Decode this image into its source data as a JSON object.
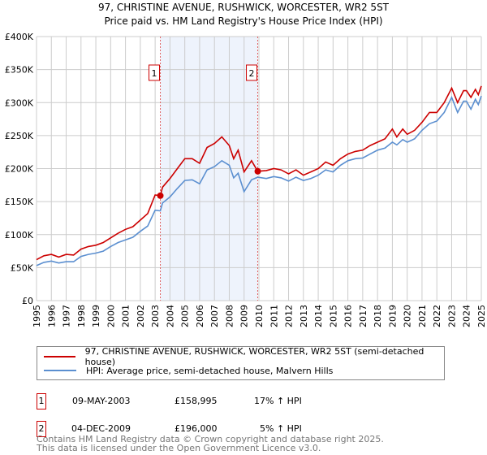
{
  "title": "97, CHRISTINE AVENUE, RUSHWICK, WORCESTER, WR2 5ST",
  "subtitle": "Price paid vs. HM Land Registry's House Price Index (HPI)",
  "chart_data": {
    "type": "line",
    "title": "97, CHRISTINE AVENUE, RUSHWICK, WORCESTER, WR2 5ST",
    "subtitle": "Price paid vs. HM Land Registry's House Price Index (HPI)",
    "xlim": [
      1995,
      2025
    ],
    "ylim": [
      0,
      400000
    ],
    "x_ticks": [
      "1995",
      "1996",
      "1997",
      "1998",
      "1999",
      "2000",
      "2001",
      "2002",
      "2003",
      "2004",
      "2005",
      "2006",
      "2007",
      "2008",
      "2009",
      "2010",
      "2011",
      "2012",
      "2013",
      "2014",
      "2015",
      "2016",
      "2017",
      "2018",
      "2019",
      "2020",
      "2021",
      "2022",
      "2023",
      "2024",
      "2025"
    ],
    "y_ticks": [
      {
        "v": 0,
        "label": "£0"
      },
      {
        "v": 50000,
        "label": "£50K"
      },
      {
        "v": 100000,
        "label": "£100K"
      },
      {
        "v": 150000,
        "label": "£150K"
      },
      {
        "v": 200000,
        "label": "£200K"
      },
      {
        "v": 250000,
        "label": "£250K"
      },
      {
        "v": 300000,
        "label": "£300K"
      },
      {
        "v": 350000,
        "label": "£350K"
      },
      {
        "v": 400000,
        "label": "£400K"
      }
    ],
    "grid": true,
    "shaded_span": [
      2003.35,
      2009.92
    ],
    "series": [
      {
        "name": "97, CHRISTINE AVENUE, RUSHWICK, WORCESTER, WR2 5ST (semi-detached house)",
        "color": "#cc0000",
        "x": [
          1995,
          1995.5,
          1996,
          1996.5,
          1997,
          1997.5,
          1998,
          1998.5,
          1999,
          1999.5,
          2000,
          2000.5,
          2001,
          2001.5,
          2002,
          2002.5,
          2003,
          2003.35,
          2003.5,
          2004,
          2004.5,
          2005,
          2005.5,
          2006,
          2006.5,
          2007,
          2007.5,
          2008,
          2008.3,
          2008.6,
          2009,
          2009.5,
          2009.92,
          2010.5,
          2011,
          2011.5,
          2012,
          2012.5,
          2013,
          2013.5,
          2014,
          2014.5,
          2015,
          2015.5,
          2016,
          2016.5,
          2017,
          2017.5,
          2018,
          2018.5,
          2019,
          2019.3,
          2019.7,
          2020,
          2020.5,
          2021,
          2021.5,
          2022,
          2022.5,
          2023,
          2023.4,
          2023.8,
          2024,
          2024.3,
          2024.6,
          2024.8,
          2025
        ],
        "y": [
          62000,
          68000,
          70000,
          66000,
          70000,
          69000,
          78000,
          82000,
          84000,
          88000,
          95000,
          102000,
          108000,
          112000,
          122000,
          132000,
          160000,
          159000,
          172000,
          185000,
          200000,
          215000,
          215000,
          208000,
          232000,
          238000,
          248000,
          235000,
          215000,
          228000,
          195000,
          212000,
          196000,
          197000,
          200000,
          198000,
          192000,
          198000,
          190000,
          195000,
          200000,
          210000,
          205000,
          215000,
          222000,
          226000,
          228000,
          235000,
          240000,
          245000,
          260000,
          248000,
          260000,
          252000,
          258000,
          270000,
          285000,
          285000,
          300000,
          322000,
          300000,
          318000,
          318000,
          308000,
          320000,
          312000,
          325000
        ]
      },
      {
        "name": "HPI: Average price, semi-detached house, Malvern Hills",
        "color": "#5b8fd0",
        "x": [
          1995,
          1995.5,
          1996,
          1996.5,
          1997,
          1997.5,
          1998,
          1998.5,
          1999,
          1999.5,
          2000,
          2000.5,
          2001,
          2001.5,
          2002,
          2002.5,
          2003,
          2003.35,
          2003.5,
          2004,
          2004.5,
          2005,
          2005.5,
          2006,
          2006.5,
          2007,
          2007.5,
          2008,
          2008.3,
          2008.6,
          2009,
          2009.5,
          2009.92,
          2010.5,
          2011,
          2011.5,
          2012,
          2012.5,
          2013,
          2013.5,
          2014,
          2014.5,
          2015,
          2015.5,
          2016,
          2016.5,
          2017,
          2017.5,
          2018,
          2018.5,
          2019,
          2019.3,
          2019.7,
          2020,
          2020.5,
          2021,
          2021.5,
          2022,
          2022.5,
          2023,
          2023.4,
          2023.8,
          2024,
          2024.3,
          2024.6,
          2024.8,
          2025
        ],
        "y": [
          53000,
          58000,
          60000,
          57000,
          59000,
          59000,
          67000,
          70000,
          72000,
          75000,
          82000,
          88000,
          92000,
          96000,
          105000,
          113000,
          137000,
          136000,
          148000,
          157000,
          170000,
          182000,
          183000,
          177000,
          198000,
          203000,
          212000,
          205000,
          186000,
          193000,
          165000,
          183000,
          187000,
          185000,
          188000,
          186000,
          181000,
          187000,
          182000,
          185000,
          190000,
          198000,
          195000,
          205000,
          212000,
          215000,
          216000,
          222000,
          228000,
          231000,
          240000,
          236000,
          244000,
          240000,
          245000,
          258000,
          268000,
          272000,
          285000,
          308000,
          285000,
          302000,
          302000,
          290000,
          305000,
          297000,
          310000
        ]
      }
    ],
    "annotations": [
      {
        "label": "1",
        "x": 2003.35,
        "y": 158995
      },
      {
        "label": "2",
        "x": 2009.92,
        "y": 196000
      }
    ]
  },
  "legend": {
    "property": "97, CHRISTINE AVENUE, RUSHWICK, WORCESTER, WR2 5ST (semi-detached house)",
    "hpi": "HPI: Average price, semi-detached house, Malvern Hills"
  },
  "sales": [
    {
      "num": "1",
      "date": "09-MAY-2003",
      "price": "£158,995",
      "hpi": "17% ↑ HPI"
    },
    {
      "num": "2",
      "date": "04-DEC-2009",
      "price": "£196,000",
      "hpi": "5% ↑ HPI"
    }
  ],
  "footer": {
    "line1": "Contains HM Land Registry data © Crown copyright and database right 2025.",
    "line2": "This data is licensed under the Open Government Licence v3.0."
  }
}
